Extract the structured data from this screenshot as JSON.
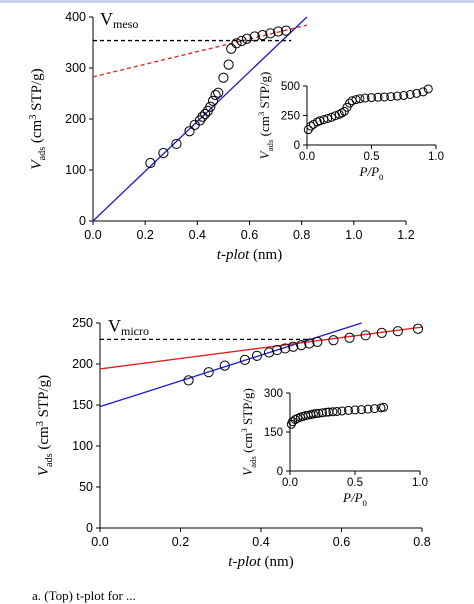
{
  "chart_data": [
    {
      "type": "scatter",
      "annotation": "V",
      "annotation_sub": "meso",
      "xlabel": "t-plot",
      "xlabel_unit": " (nm)",
      "ylabel": "V",
      "ylabel_sub": "ads",
      "ylabel_unit": " (cm",
      "ylabel_sup": "3",
      "ylabel_rest": " STP/g)",
      "xlim": [
        0,
        1.2
      ],
      "ylim": [
        0,
        450
      ],
      "xticks": [
        "0.0",
        "0.2",
        "0.4",
        "0.6",
        "0.8",
        "1.0",
        "1.2"
      ],
      "yticks": [
        "0",
        "100",
        "200",
        "300",
        "400"
      ],
      "x": [
        0.22,
        0.27,
        0.32,
        0.37,
        0.39,
        0.41,
        0.42,
        0.43,
        0.44,
        0.45,
        0.46,
        0.47,
        0.48,
        0.5,
        0.52,
        0.53,
        0.55,
        0.57,
        0.59,
        0.62,
        0.65,
        0.68,
        0.71,
        0.74
      ],
      "y": [
        128,
        150,
        170,
        198,
        212,
        222,
        230,
        236,
        243,
        252,
        265,
        278,
        283,
        316,
        345,
        380,
        392,
        397,
        402,
        407,
        410,
        414,
        418,
        420
      ],
      "lines": [
        {
          "color": "#1c1cc8",
          "style": "solid",
          "x": [
            0,
            0.82
          ],
          "y": [
            0,
            450
          ]
        },
        {
          "color": "#e02020",
          "style": "dashed",
          "x": [
            0,
            0.82
          ],
          "y": [
            318,
            432
          ]
        },
        {
          "color": "#000000",
          "style": "dashed",
          "x": [
            0,
            0.76
          ],
          "y": [
            398,
            398
          ]
        }
      ],
      "inset": {
        "xlabel": "P/P",
        "xlabel_sub": "0",
        "ylabel": "V",
        "ylabel_sub": "ads",
        "ylabel_unit": " (cm",
        "ylabel_sup": "3",
        "ylabel_rest": " STP/g)",
        "xlim": [
          0,
          1.0
        ],
        "ylim": [
          0,
          500
        ],
        "xticks": [
          "0.0",
          "0.5",
          "1.0"
        ],
        "yticks": [
          "0",
          "250",
          "500"
        ],
        "x": [
          0.01,
          0.03,
          0.05,
          0.08,
          0.1,
          0.13,
          0.16,
          0.19,
          0.22,
          0.25,
          0.27,
          0.29,
          0.31,
          0.33,
          0.35,
          0.38,
          0.41,
          0.45,
          0.5,
          0.55,
          0.6,
          0.65,
          0.7,
          0.75,
          0.8,
          0.85,
          0.9,
          0.94
        ],
        "y": [
          130,
          160,
          175,
          195,
          205,
          215,
          225,
          235,
          248,
          260,
          272,
          285,
          320,
          355,
          375,
          385,
          392,
          398,
          402,
          405,
          407,
          410,
          415,
          420,
          428,
          437,
          450,
          475
        ]
      }
    },
    {
      "type": "scatter",
      "annotation": "V",
      "annotation_sub": "micro",
      "xlabel": "t-plot",
      "xlabel_unit": " (nm)",
      "ylabel": "V",
      "ylabel_sub": "ads",
      "ylabel_unit": " (cm",
      "ylabel_sup": "3",
      "ylabel_rest": " STP/g)",
      "xlim": [
        0,
        0.8
      ],
      "ylim": [
        0,
        250
      ],
      "xticks": [
        "0.0",
        "0.2",
        "0.4",
        "0.6",
        "0.8"
      ],
      "yticks": [
        "0",
        "50",
        "100",
        "150",
        "200",
        "250"
      ],
      "x": [
        0.22,
        0.27,
        0.31,
        0.36,
        0.39,
        0.42,
        0.44,
        0.46,
        0.48,
        0.5,
        0.52,
        0.54,
        0.58,
        0.62,
        0.66,
        0.7,
        0.74,
        0.79
      ],
      "y": [
        180,
        190,
        198,
        205,
        210,
        214,
        217,
        219,
        221,
        223,
        225,
        227,
        229,
        232,
        235,
        238,
        240,
        243
      ],
      "lines": [
        {
          "color": "#1c1cc8",
          "style": "solid",
          "x": [
            0,
            0.65
          ],
          "y": [
            148,
            250
          ]
        },
        {
          "color": "#e02020",
          "style": "solid",
          "x": [
            0,
            0.8
          ],
          "y": [
            194,
            245
          ]
        },
        {
          "color": "#000000",
          "style": "dashed",
          "x": [
            0,
            0.52
          ],
          "y": [
            230,
            230
          ]
        }
      ],
      "inset": {
        "xlabel": "P/P",
        "xlabel_sub": "0",
        "ylabel": "V",
        "ylabel_sub": "ads",
        "ylabel_unit": " (cm",
        "ylabel_sup": "3",
        "ylabel_rest": " STP/g)",
        "xlim": [
          0,
          1.0
        ],
        "ylim": [
          0,
          300
        ],
        "xticks": [
          "0.0",
          "0.5",
          "1.0"
        ],
        "yticks": [
          "0",
          "150",
          "300"
        ],
        "x": [
          0.01,
          0.02,
          0.04,
          0.06,
          0.08,
          0.1,
          0.12,
          0.14,
          0.16,
          0.18,
          0.2,
          0.22,
          0.25,
          0.28,
          0.3,
          0.33,
          0.36,
          0.4,
          0.45,
          0.5,
          0.55,
          0.6,
          0.65,
          0.7,
          0.72
        ],
        "y": [
          180,
          190,
          198,
          203,
          207,
          210,
          213,
          215,
          217,
          219,
          221,
          222,
          224,
          226,
          227,
          228,
          229,
          231,
          233,
          235,
          236,
          238,
          240,
          243,
          245
        ]
      }
    }
  ],
  "caption": "a. (Top) t-plot for ..."
}
